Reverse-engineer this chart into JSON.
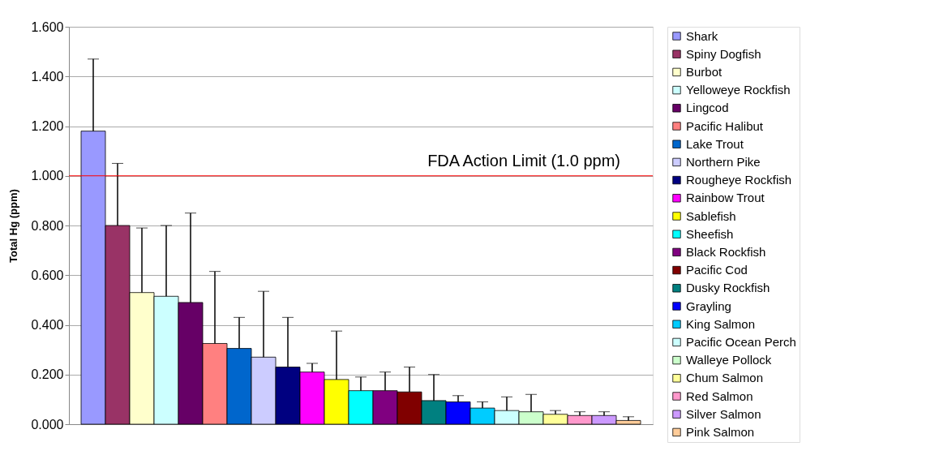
{
  "chart_data": {
    "type": "bar",
    "ylabel": "Total Hg (ppm)",
    "categories": [
      null,
      null,
      null,
      null,
      null,
      null,
      null,
      null,
      null,
      null,
      null,
      null,
      null,
      null,
      null,
      null,
      null,
      null,
      null,
      null,
      null,
      null,
      null
    ],
    "series": [
      {
        "name": "Shark",
        "color": "#9999ff",
        "values": [
          1.18,
          null,
          null,
          null,
          null,
          null,
          null,
          null,
          null,
          null,
          null,
          null,
          null,
          null,
          null,
          null,
          null,
          null,
          null,
          null,
          null,
          null,
          null
        ],
        "errors": [
          [
            1.18,
            1.47
          ],
          null,
          null,
          null,
          null,
          null,
          null,
          null,
          null,
          null,
          null,
          null,
          null,
          null,
          null,
          null,
          null,
          null,
          null,
          null,
          null,
          null,
          null
        ]
      },
      {
        "name": "Spiny Dogfish",
        "color": "#993366",
        "values": [
          null,
          0.8,
          null,
          null,
          null,
          null,
          null,
          null,
          null,
          null,
          null,
          null,
          null,
          null,
          null,
          null,
          null,
          null,
          null,
          null,
          null,
          null,
          null
        ],
        "errors": [
          null,
          [
            0.8,
            1.05
          ],
          null,
          null,
          null,
          null,
          null,
          null,
          null,
          null,
          null,
          null,
          null,
          null,
          null,
          null,
          null,
          null,
          null,
          null,
          null,
          null,
          null
        ]
      },
      {
        "name": "Burbot",
        "color": "#ffffcc",
        "values": [
          null,
          null,
          0.53,
          null,
          null,
          null,
          null,
          null,
          null,
          null,
          null,
          null,
          null,
          null,
          null,
          null,
          null,
          null,
          null,
          null,
          null,
          null,
          null
        ],
        "errors": [
          null,
          null,
          [
            0.53,
            0.79
          ],
          null,
          null,
          null,
          null,
          null,
          null,
          null,
          null,
          null,
          null,
          null,
          null,
          null,
          null,
          null,
          null,
          null,
          null,
          null,
          null
        ]
      },
      {
        "name": "Yelloweye Rockfish",
        "color": "#ccffff",
        "values": [
          null,
          null,
          null,
          0.515,
          null,
          null,
          null,
          null,
          null,
          null,
          null,
          null,
          null,
          null,
          null,
          null,
          null,
          null,
          null,
          null,
          null,
          null,
          null
        ],
        "errors": [
          null,
          null,
          null,
          [
            0.515,
            0.8
          ],
          null,
          null,
          null,
          null,
          null,
          null,
          null,
          null,
          null,
          null,
          null,
          null,
          null,
          null,
          null,
          null,
          null,
          null,
          null
        ]
      },
      {
        "name": "Lingcod",
        "color": "#660066",
        "values": [
          null,
          null,
          null,
          null,
          0.49,
          null,
          null,
          null,
          null,
          null,
          null,
          null,
          null,
          null,
          null,
          null,
          null,
          null,
          null,
          null,
          null,
          null,
          null
        ],
        "errors": [
          null,
          null,
          null,
          null,
          [
            0.49,
            0.85
          ],
          null,
          null,
          null,
          null,
          null,
          null,
          null,
          null,
          null,
          null,
          null,
          null,
          null,
          null,
          null,
          null,
          null,
          null
        ]
      },
      {
        "name": "Pacific Halibut",
        "color": "#ff8080",
        "values": [
          null,
          null,
          null,
          null,
          null,
          0.325,
          null,
          null,
          null,
          null,
          null,
          null,
          null,
          null,
          null,
          null,
          null,
          null,
          null,
          null,
          null,
          null,
          null
        ],
        "errors": [
          null,
          null,
          null,
          null,
          null,
          [
            0.325,
            0.615
          ],
          null,
          null,
          null,
          null,
          null,
          null,
          null,
          null,
          null,
          null,
          null,
          null,
          null,
          null,
          null,
          null,
          null
        ]
      },
      {
        "name": "Lake Trout",
        "color": "#0066cc",
        "values": [
          null,
          null,
          null,
          null,
          null,
          null,
          0.305,
          null,
          null,
          null,
          null,
          null,
          null,
          null,
          null,
          null,
          null,
          null,
          null,
          null,
          null,
          null,
          null
        ],
        "errors": [
          null,
          null,
          null,
          null,
          null,
          null,
          [
            0.305,
            0.43
          ],
          null,
          null,
          null,
          null,
          null,
          null,
          null,
          null,
          null,
          null,
          null,
          null,
          null,
          null,
          null,
          null
        ]
      },
      {
        "name": "Northern Pike",
        "color": "#ccccff",
        "values": [
          null,
          null,
          null,
          null,
          null,
          null,
          null,
          0.27,
          null,
          null,
          null,
          null,
          null,
          null,
          null,
          null,
          null,
          null,
          null,
          null,
          null,
          null,
          null
        ],
        "errors": [
          null,
          null,
          null,
          null,
          null,
          null,
          null,
          [
            0.27,
            0.535
          ],
          null,
          null,
          null,
          null,
          null,
          null,
          null,
          null,
          null,
          null,
          null,
          null,
          null,
          null,
          null
        ]
      },
      {
        "name": "Rougheye Rockfish",
        "color": "#000080",
        "values": [
          null,
          null,
          null,
          null,
          null,
          null,
          null,
          null,
          0.23,
          null,
          null,
          null,
          null,
          null,
          null,
          null,
          null,
          null,
          null,
          null,
          null,
          null,
          null
        ],
        "errors": [
          null,
          null,
          null,
          null,
          null,
          null,
          null,
          null,
          [
            0.23,
            0.43
          ],
          null,
          null,
          null,
          null,
          null,
          null,
          null,
          null,
          null,
          null,
          null,
          null,
          null,
          null
        ]
      },
      {
        "name": "Rainbow Trout",
        "color": "#ff00ff",
        "values": [
          null,
          null,
          null,
          null,
          null,
          null,
          null,
          null,
          null,
          0.21,
          null,
          null,
          null,
          null,
          null,
          null,
          null,
          null,
          null,
          null,
          null,
          null,
          null
        ],
        "errors": [
          null,
          null,
          null,
          null,
          null,
          null,
          null,
          null,
          null,
          [
            0.21,
            0.245
          ],
          null,
          null,
          null,
          null,
          null,
          null,
          null,
          null,
          null,
          null,
          null,
          null,
          null
        ]
      },
      {
        "name": "Sablefish",
        "color": "#ffff00",
        "values": [
          null,
          null,
          null,
          null,
          null,
          null,
          null,
          null,
          null,
          null,
          0.18,
          null,
          null,
          null,
          null,
          null,
          null,
          null,
          null,
          null,
          null,
          null,
          null
        ],
        "errors": [
          null,
          null,
          null,
          null,
          null,
          null,
          null,
          null,
          null,
          null,
          [
            0.18,
            0.375
          ],
          null,
          null,
          null,
          null,
          null,
          null,
          null,
          null,
          null,
          null,
          null,
          null
        ]
      },
      {
        "name": "Sheefish",
        "color": "#00ffff",
        "values": [
          null,
          null,
          null,
          null,
          null,
          null,
          null,
          null,
          null,
          null,
          null,
          0.135,
          null,
          null,
          null,
          null,
          null,
          null,
          null,
          null,
          null,
          null,
          null
        ],
        "errors": [
          null,
          null,
          null,
          null,
          null,
          null,
          null,
          null,
          null,
          null,
          null,
          [
            0.135,
            0.19
          ],
          null,
          null,
          null,
          null,
          null,
          null,
          null,
          null,
          null,
          null,
          null
        ]
      },
      {
        "name": "Black Rockfish",
        "color": "#800080",
        "values": [
          null,
          null,
          null,
          null,
          null,
          null,
          null,
          null,
          null,
          null,
          null,
          null,
          0.135,
          null,
          null,
          null,
          null,
          null,
          null,
          null,
          null,
          null,
          null
        ],
        "errors": [
          null,
          null,
          null,
          null,
          null,
          null,
          null,
          null,
          null,
          null,
          null,
          null,
          [
            0.135,
            0.21
          ],
          null,
          null,
          null,
          null,
          null,
          null,
          null,
          null,
          null,
          null
        ]
      },
      {
        "name": "Pacific Cod",
        "color": "#800000",
        "values": [
          null,
          null,
          null,
          null,
          null,
          null,
          null,
          null,
          null,
          null,
          null,
          null,
          null,
          0.13,
          null,
          null,
          null,
          null,
          null,
          null,
          null,
          null,
          null
        ],
        "errors": [
          null,
          null,
          null,
          null,
          null,
          null,
          null,
          null,
          null,
          null,
          null,
          null,
          null,
          [
            0.13,
            0.23
          ],
          null,
          null,
          null,
          null,
          null,
          null,
          null,
          null,
          null
        ]
      },
      {
        "name": "Dusky Rockfish",
        "color": "#008080",
        "values": [
          null,
          null,
          null,
          null,
          null,
          null,
          null,
          null,
          null,
          null,
          null,
          null,
          null,
          null,
          0.095,
          null,
          null,
          null,
          null,
          null,
          null,
          null,
          null
        ],
        "errors": [
          null,
          null,
          null,
          null,
          null,
          null,
          null,
          null,
          null,
          null,
          null,
          null,
          null,
          null,
          [
            0.095,
            0.2
          ],
          null,
          null,
          null,
          null,
          null,
          null,
          null,
          null
        ]
      },
      {
        "name": "Grayling",
        "color": "#0000ff",
        "values": [
          null,
          null,
          null,
          null,
          null,
          null,
          null,
          null,
          null,
          null,
          null,
          null,
          null,
          null,
          null,
          0.09,
          null,
          null,
          null,
          null,
          null,
          null,
          null
        ],
        "errors": [
          null,
          null,
          null,
          null,
          null,
          null,
          null,
          null,
          null,
          null,
          null,
          null,
          null,
          null,
          null,
          [
            0.09,
            0.115
          ],
          null,
          null,
          null,
          null,
          null,
          null,
          null
        ]
      },
      {
        "name": "King Salmon",
        "color": "#00ccff",
        "values": [
          null,
          null,
          null,
          null,
          null,
          null,
          null,
          null,
          null,
          null,
          null,
          null,
          null,
          null,
          null,
          null,
          0.065,
          null,
          null,
          null,
          null,
          null,
          null
        ],
        "errors": [
          null,
          null,
          null,
          null,
          null,
          null,
          null,
          null,
          null,
          null,
          null,
          null,
          null,
          null,
          null,
          null,
          [
            0.065,
            0.09
          ],
          null,
          null,
          null,
          null,
          null,
          null
        ]
      },
      {
        "name": "Pacific Ocean Perch",
        "color": "#ccffff",
        "values": [
          null,
          null,
          null,
          null,
          null,
          null,
          null,
          null,
          null,
          null,
          null,
          null,
          null,
          null,
          null,
          null,
          null,
          0.055,
          null,
          null,
          null,
          null,
          null
        ],
        "errors": [
          null,
          null,
          null,
          null,
          null,
          null,
          null,
          null,
          null,
          null,
          null,
          null,
          null,
          null,
          null,
          null,
          null,
          [
            0.055,
            0.11
          ],
          null,
          null,
          null,
          null,
          null
        ]
      },
      {
        "name": "Walleye Pollock",
        "color": "#ccffcc",
        "values": [
          null,
          null,
          null,
          null,
          null,
          null,
          null,
          null,
          null,
          null,
          null,
          null,
          null,
          null,
          null,
          null,
          null,
          null,
          0.05,
          null,
          null,
          null,
          null
        ],
        "errors": [
          null,
          null,
          null,
          null,
          null,
          null,
          null,
          null,
          null,
          null,
          null,
          null,
          null,
          null,
          null,
          null,
          null,
          null,
          [
            0.05,
            0.12
          ],
          null,
          null,
          null,
          null
        ]
      },
      {
        "name": "Chum Salmon",
        "color": "#ffff99",
        "values": [
          null,
          null,
          null,
          null,
          null,
          null,
          null,
          null,
          null,
          null,
          null,
          null,
          null,
          null,
          null,
          null,
          null,
          null,
          null,
          0.04,
          null,
          null,
          null
        ],
        "errors": [
          null,
          null,
          null,
          null,
          null,
          null,
          null,
          null,
          null,
          null,
          null,
          null,
          null,
          null,
          null,
          null,
          null,
          null,
          null,
          [
            0.04,
            0.055
          ],
          null,
          null,
          null
        ]
      },
      {
        "name": "Red Salmon",
        "color": "#ff99cc",
        "values": [
          null,
          null,
          null,
          null,
          null,
          null,
          null,
          null,
          null,
          null,
          null,
          null,
          null,
          null,
          null,
          null,
          null,
          null,
          null,
          null,
          0.035,
          null,
          null
        ],
        "errors": [
          null,
          null,
          null,
          null,
          null,
          null,
          null,
          null,
          null,
          null,
          null,
          null,
          null,
          null,
          null,
          null,
          null,
          null,
          null,
          null,
          [
            0.035,
            0.05
          ],
          null,
          null
        ]
      },
      {
        "name": "Silver Salmon",
        "color": "#cc99ff",
        "values": [
          null,
          null,
          null,
          null,
          null,
          null,
          null,
          null,
          null,
          null,
          null,
          null,
          null,
          null,
          null,
          null,
          null,
          null,
          null,
          null,
          null,
          0.035,
          null
        ],
        "errors": [
          null,
          null,
          null,
          null,
          null,
          null,
          null,
          null,
          null,
          null,
          null,
          null,
          null,
          null,
          null,
          null,
          null,
          null,
          null,
          null,
          null,
          [
            0.035,
            0.05
          ],
          null
        ]
      },
      {
        "name": "Pink Salmon",
        "color": "#ffcc99",
        "values": [
          null,
          null,
          null,
          null,
          null,
          null,
          null,
          null,
          null,
          null,
          null,
          null,
          null,
          null,
          null,
          null,
          null,
          null,
          null,
          null,
          null,
          null,
          0.015
        ],
        "errors": [
          null,
          null,
          null,
          null,
          null,
          null,
          null,
          null,
          null,
          null,
          null,
          null,
          null,
          null,
          null,
          null,
          null,
          null,
          null,
          null,
          null,
          null,
          [
            0.015,
            0.03
          ]
        ]
      }
    ],
    "ylim": [
      0,
      1.6
    ],
    "yticks": [
      {
        "value": 0,
        "label": "0.000"
      },
      {
        "value": 0.2,
        "label": "0.200"
      },
      {
        "value": 0.4,
        "label": "0.400"
      },
      {
        "value": 0.6,
        "label": "0.600"
      },
      {
        "value": 0.8,
        "label": "0.800"
      },
      {
        "value": 1.0,
        "label": "1.000"
      },
      {
        "value": 1.2,
        "label": "1.200"
      },
      {
        "value": 1.4,
        "label": "1.400"
      },
      {
        "value": 1.6,
        "label": "1.600"
      }
    ],
    "ref_lines": [
      {
        "axis": "y",
        "value": 1.0,
        "label": "FDA  Action Limit (1.0 ppm)",
        "color": "#ff0000"
      }
    ],
    "grid": "y",
    "legend": "right",
    "tick_labels": "y"
  }
}
